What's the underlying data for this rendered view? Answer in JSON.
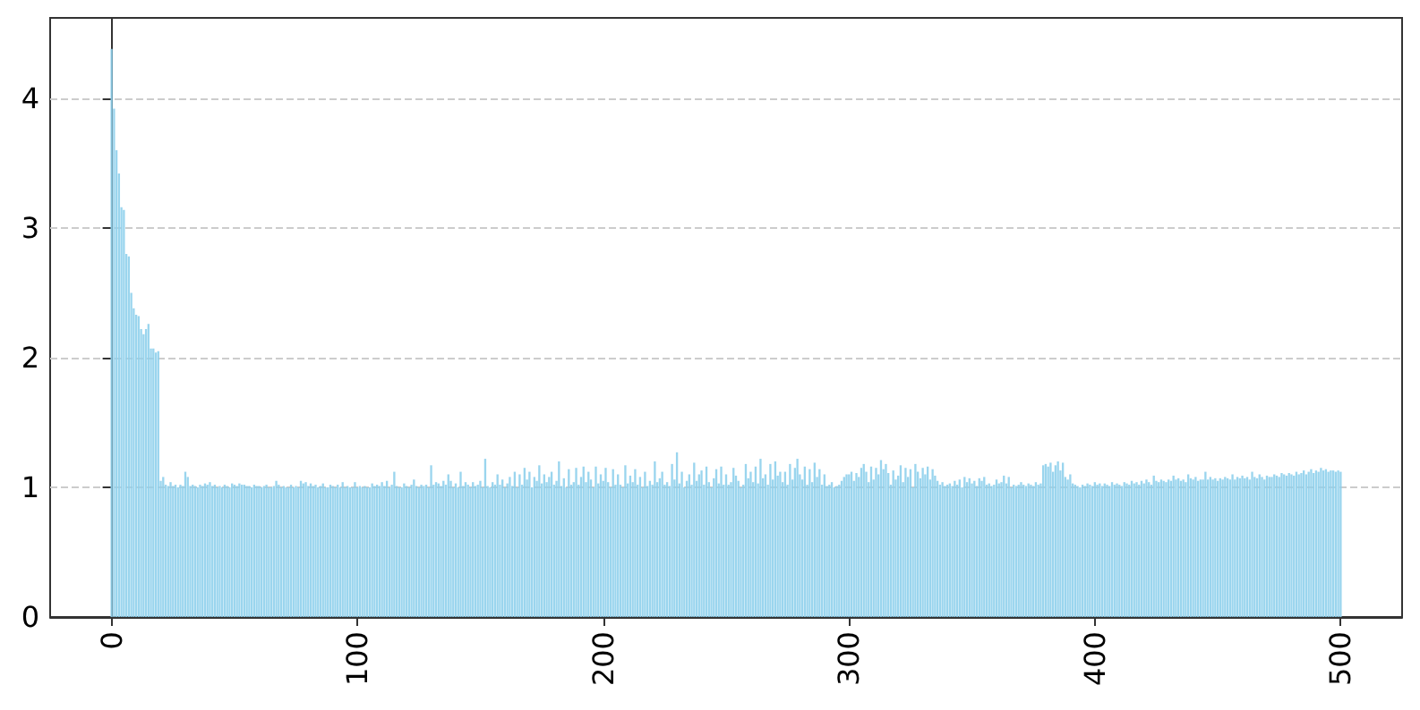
{
  "chart_data": {
    "type": "bar",
    "color": "#8fd0ec",
    "xlim": [
      -25,
      525
    ],
    "xticks": [
      0,
      100,
      200,
      300,
      400,
      500
    ],
    "ylim": [
      0,
      4.62
    ],
    "yticks": [
      0,
      1,
      2,
      3,
      4
    ],
    "grid": "y",
    "x": [
      0,
      1,
      2,
      3,
      4,
      5,
      6,
      7,
      8,
      9,
      10,
      11,
      12,
      13,
      14,
      15,
      16,
      17,
      18,
      19,
      20,
      21,
      22,
      23,
      24,
      25,
      26,
      27,
      28,
      29,
      30,
      31,
      32,
      33,
      34,
      35,
      36,
      37,
      38,
      39,
      40,
      41,
      42,
      43,
      44,
      45,
      46,
      47,
      48,
      49,
      50,
      51,
      52,
      53,
      54,
      55,
      56,
      57,
      58,
      59,
      60,
      61,
      62,
      63,
      64,
      65,
      66,
      67,
      68,
      69,
      70,
      71,
      72,
      73,
      74,
      75,
      76,
      77,
      78,
      79,
      80,
      81,
      82,
      83,
      84,
      85,
      86,
      87,
      88,
      89,
      90,
      91,
      92,
      93,
      94,
      95,
      96,
      97,
      98,
      99,
      100,
      101,
      102,
      103,
      104,
      105,
      106,
      107,
      108,
      109,
      110,
      111,
      112,
      113,
      114,
      115,
      116,
      117,
      118,
      119,
      120,
      121,
      122,
      123,
      124,
      125,
      126,
      127,
      128,
      129,
      130,
      131,
      132,
      133,
      134,
      135,
      136,
      137,
      138,
      139,
      140,
      141,
      142,
      143,
      144,
      145,
      146,
      147,
      148,
      149,
      150,
      151,
      152,
      153,
      154,
      155,
      156,
      157,
      158,
      159,
      160,
      161,
      162,
      163,
      164,
      165,
      166,
      167,
      168,
      169,
      170,
      171,
      172,
      173,
      174,
      175,
      176,
      177,
      178,
      179,
      180,
      181,
      182,
      183,
      184,
      185,
      186,
      187,
      188,
      189,
      190,
      191,
      192,
      193,
      194,
      195,
      196,
      197,
      198,
      199,
      200,
      201,
      202,
      203,
      204,
      205,
      206,
      207,
      208,
      209,
      210,
      211,
      212,
      213,
      214,
      215,
      216,
      217,
      218,
      219,
      220,
      221,
      222,
      223,
      224,
      225,
      226,
      227,
      228,
      229,
      230,
      231,
      232,
      233,
      234,
      235,
      236,
      237,
      238,
      239,
      240,
      241,
      242,
      243,
      244,
      245,
      246,
      247,
      248,
      249,
      250,
      251,
      252,
      253,
      254,
      255,
      256,
      257,
      258,
      259,
      260,
      261,
      262,
      263,
      264,
      265,
      266,
      267,
      268,
      269,
      270,
      271,
      272,
      273,
      274,
      275,
      276,
      277,
      278,
      279,
      280,
      281,
      282,
      283,
      284,
      285,
      286,
      287,
      288,
      289,
      290,
      291,
      292,
      293,
      294,
      295,
      296,
      297,
      298,
      299,
      300,
      301,
      302,
      303,
      304,
      305,
      306,
      307,
      308,
      309,
      310,
      311,
      312,
      313,
      314,
      315,
      316,
      317,
      318,
      319,
      320,
      321,
      322,
      323,
      324,
      325,
      326,
      327,
      328,
      329,
      330,
      331,
      332,
      333,
      334,
      335,
      336,
      337,
      338,
      339,
      340,
      341,
      342,
      343,
      344,
      345,
      346,
      347,
      348,
      349,
      350,
      351,
      352,
      353,
      354,
      355,
      356,
      357,
      358,
      359,
      360,
      361,
      362,
      363,
      364,
      365,
      366,
      367,
      368,
      369,
      370,
      371,
      372,
      373,
      374,
      375,
      376,
      377,
      378,
      379,
      380,
      381,
      382,
      383,
      384,
      385,
      386,
      387,
      388,
      389,
      390,
      391,
      392,
      393,
      394,
      395,
      396,
      397,
      398,
      399,
      400,
      401,
      402,
      403,
      404,
      405,
      406,
      407,
      408,
      409,
      410,
      411,
      412,
      413,
      414,
      415,
      416,
      417,
      418,
      419,
      420,
      421,
      422,
      423,
      424,
      425,
      426,
      427,
      428,
      429,
      430,
      431,
      432,
      433,
      434,
      435,
      436,
      437,
      438,
      439,
      440,
      441,
      442,
      443,
      444,
      445,
      446,
      447,
      448,
      449,
      450,
      451,
      452,
      453,
      454,
      455,
      456,
      457,
      458,
      459,
      460,
      461,
      462,
      463,
      464,
      465,
      466,
      467,
      468,
      469,
      470,
      471,
      472,
      473,
      474,
      475,
      476,
      477,
      478,
      479,
      480,
      481,
      482,
      483,
      484,
      485,
      486,
      487,
      488,
      489,
      490,
      491,
      492,
      493,
      494,
      495,
      496,
      497,
      498,
      499,
      500
    ],
    "values": [
      4.38,
      3.92,
      3.6,
      3.42,
      3.16,
      3.14,
      2.8,
      2.78,
      2.5,
      2.38,
      2.33,
      2.32,
      2.22,
      2.18,
      2.22,
      2.26,
      2.07,
      2.07,
      2.04,
      2.05,
      1.05,
      1.08,
      1.02,
      1.01,
      1.04,
      1.01,
      1.02,
      1.0,
      1.02,
      1.01,
      1.12,
      1.08,
      1.01,
      1.02,
      1.01,
      1.0,
      1.02,
      1.01,
      1.03,
      1.02,
      1.04,
      1.01,
      1.02,
      1.0,
      1.01,
      1.0,
      1.02,
      1.01,
      1.0,
      1.03,
      1.02,
      1.01,
      1.03,
      1.02,
      1.02,
      1.01,
      1.01,
      1.0,
      1.02,
      1.01,
      1.01,
      1.0,
      1.01,
      1.02,
      1.0,
      1.0,
      1.01,
      1.05,
      1.02,
      1.0,
      1.01,
      1.0,
      1.0,
      1.02,
      1.0,
      1.01,
      1.0,
      1.05,
      1.03,
      1.04,
      1.01,
      1.03,
      1.01,
      1.02,
      1.0,
      1.01,
      1.03,
      1.0,
      1.0,
      1.02,
      1.01,
      1.0,
      1.02,
      1.0,
      1.04,
      1.0,
      1.01,
      1.0,
      1.0,
      1.04,
      1.0,
      1.01,
      1.0,
      1.01,
      1.0,
      1.0,
      1.03,
      1.01,
      1.02,
      1.01,
      1.04,
      1.01,
      1.05,
      1.0,
      1.02,
      1.12,
      1.01,
      1.0,
      1.0,
      1.03,
      1.01,
      1.0,
      1.02,
      1.06,
      1.01,
      1.0,
      1.02,
      1.01,
      1.02,
      1.0,
      1.17,
      1.02,
      1.04,
      1.03,
      1.01,
      1.05,
      1.02,
      1.1,
      1.05,
      1.0,
      1.03,
      1.0,
      1.12,
      1.01,
      1.04,
      1.02,
      1.0,
      1.04,
      1.01,
      1.02,
      1.05,
      1.0,
      1.22,
      1.01,
      1.0,
      1.04,
      1.02,
      1.1,
      1.02,
      1.06,
      1.0,
      1.03,
      1.08,
      1.01,
      1.12,
      1.0,
      1.1,
      1.02,
      1.15,
      1.06,
      1.12,
      1.0,
      1.08,
      1.05,
      1.17,
      1.03,
      1.1,
      1.04,
      1.08,
      1.12,
      1.02,
      1.05,
      1.2,
      1.01,
      1.07,
      1.0,
      1.14,
      1.02,
      1.04,
      1.15,
      1.02,
      1.08,
      1.16,
      1.04,
      1.12,
      1.06,
      1.0,
      1.16,
      1.03,
      1.1,
      1.05,
      1.15,
      1.04,
      1.0,
      1.14,
      1.02,
      1.1,
      1.02,
      1.0,
      1.17,
      1.03,
      1.09,
      1.04,
      1.14,
      1.02,
      1.08,
      1.0,
      1.12,
      1.01,
      1.05,
      1.02,
      1.2,
      1.04,
      1.07,
      1.12,
      1.02,
      1.04,
      1.01,
      1.18,
      1.06,
      1.27,
      1.03,
      1.12,
      1.0,
      1.05,
      1.1,
      1.02,
      1.19,
      1.05,
      1.1,
      1.13,
      1.02,
      1.16,
      1.04,
      1.0,
      1.07,
      1.14,
      1.03,
      1.16,
      1.02,
      1.1,
      1.02,
      1.04,
      1.15,
      1.09,
      1.05,
      1.0,
      1.02,
      1.18,
      1.07,
      1.12,
      1.04,
      1.16,
      1.03,
      1.22,
      1.07,
      1.1,
      1.02,
      1.18,
      1.06,
      1.2,
      1.09,
      1.12,
      1.04,
      1.12,
      1.02,
      1.18,
      1.06,
      1.15,
      1.22,
      1.1,
      1.06,
      1.16,
      1.02,
      1.14,
      1.04,
      1.19,
      1.08,
      1.14,
      1.02,
      1.1,
      1.01,
      1.02,
      1.04,
      1.0,
      1.01,
      1.02,
      1.05,
      1.08,
      1.1,
      1.1,
      1.12,
      1.05,
      1.11,
      1.08,
      1.15,
      1.18,
      1.12,
      1.04,
      1.16,
      1.06,
      1.15,
      1.1,
      1.21,
      1.14,
      1.18,
      1.11,
      1.02,
      1.13,
      1.06,
      1.09,
      1.17,
      1.04,
      1.15,
      1.08,
      1.14,
      1.0,
      1.18,
      1.12,
      1.07,
      1.15,
      1.1,
      1.16,
      1.06,
      1.14,
      1.09,
      1.05,
      1.02,
      1.04,
      1.01,
      1.02,
      1.03,
      1.01,
      1.05,
      1.02,
      1.06,
      1.0,
      1.08,
      1.04,
      1.07,
      1.03,
      1.05,
      1.01,
      1.07,
      1.05,
      1.08,
      1.02,
      1.03,
      1.01,
      1.02,
      1.06,
      1.03,
      1.04,
      1.09,
      1.03,
      1.08,
      1.0,
      1.02,
      1.01,
      1.02,
      1.04,
      1.02,
      1.01,
      1.03,
      1.02,
      1.01,
      1.04,
      1.02,
      1.03,
      1.17,
      1.18,
      1.16,
      1.19,
      1.12,
      1.17,
      1.2,
      1.13,
      1.19,
      1.08,
      1.06,
      1.1,
      1.03,
      1.02,
      1.01,
      1.0,
      1.02,
      1.01,
      1.03,
      1.02,
      1.01,
      1.04,
      1.02,
      1.03,
      1.01,
      1.03,
      1.02,
      1.01,
      1.04,
      1.02,
      1.03,
      1.02,
      1.01,
      1.04,
      1.03,
      1.02,
      1.05,
      1.03,
      1.04,
      1.02,
      1.05,
      1.03,
      1.06,
      1.04,
      1.02,
      1.09,
      1.05,
      1.04,
      1.06,
      1.05,
      1.04,
      1.06,
      1.05,
      1.09,
      1.06,
      1.07,
      1.05,
      1.06,
      1.04,
      1.1,
      1.07,
      1.06,
      1.08,
      1.05,
      1.06,
      1.06,
      1.12,
      1.06,
      1.08,
      1.06,
      1.07,
      1.05,
      1.07,
      1.06,
      1.08,
      1.07,
      1.06,
      1.1,
      1.06,
      1.08,
      1.07,
      1.09,
      1.07,
      1.08,
      1.06,
      1.12,
      1.08,
      1.07,
      1.1,
      1.08,
      1.06,
      1.09,
      1.08,
      1.08,
      1.1,
      1.09,
      1.08,
      1.11,
      1.1,
      1.09,
      1.11,
      1.1,
      1.09,
      1.12,
      1.1,
      1.11,
      1.13,
      1.1,
      1.12,
      1.14,
      1.11,
      1.13,
      1.12,
      1.15,
      1.13,
      1.14,
      1.12,
      1.13,
      1.13,
      1.12,
      1.13,
      1.12
    ]
  }
}
